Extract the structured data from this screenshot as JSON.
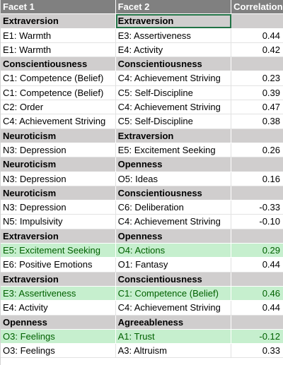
{
  "table": {
    "headers": [
      "Facet 1",
      "Facet 2",
      "Correlation"
    ],
    "rows": [
      {
        "type": "group",
        "c1": "Extraversion",
        "c2": "Extraversion",
        "c3": ""
      },
      {
        "type": "data",
        "c1": "E1: Warmth",
        "c2": "E3: Assertiveness",
        "c3": "0.44"
      },
      {
        "type": "data",
        "c1": "E1: Warmth",
        "c2": "E4: Activity",
        "c3": "0.42"
      },
      {
        "type": "group",
        "c1": "Conscientiousness",
        "c2": "Conscientiousness",
        "c3": ""
      },
      {
        "type": "data",
        "c1": "C1: Competence (Belief)",
        "c2": "C4: Achievement Striving",
        "c3": "0.23"
      },
      {
        "type": "data",
        "c1": "C1: Competence (Belief)",
        "c2": "C5: Self-Discipline",
        "c3": "0.39"
      },
      {
        "type": "data",
        "c1": "C2: Order",
        "c2": "C4: Achievement Striving",
        "c3": "0.47"
      },
      {
        "type": "data",
        "c1": "C4: Achievement Striving",
        "c2": "C5: Self-Discipline",
        "c3": "0.38"
      },
      {
        "type": "group",
        "c1": "Neuroticism",
        "c2": "Extraversion",
        "c3": ""
      },
      {
        "type": "data",
        "c1": "N3: Depression",
        "c2": "E5: Excitement Seeking",
        "c3": "0.26"
      },
      {
        "type": "group",
        "c1": "Neuroticism",
        "c2": "Openness",
        "c3": ""
      },
      {
        "type": "data",
        "c1": "N3: Depression",
        "c2": "O5: Ideas",
        "c3": "0.16"
      },
      {
        "type": "group",
        "c1": "Neuroticism",
        "c2": "Conscientiousness",
        "c3": ""
      },
      {
        "type": "data",
        "c1": "N3: Depression",
        "c2": "C6: Deliberation",
        "c3": "-0.33"
      },
      {
        "type": "data",
        "c1": "N5: Impulsivity",
        "c2": "C4: Achievement Striving",
        "c3": "-0.10"
      },
      {
        "type": "group",
        "c1": "Extraversion",
        "c2": "Openness",
        "c3": ""
      },
      {
        "type": "highlight",
        "c1": "E5: Excitement Seeking",
        "c2": "O4: Actions",
        "c3": "0.29"
      },
      {
        "type": "data",
        "c1": "E6: Positive Emotions",
        "c2": "O1: Fantasy",
        "c3": "0.44"
      },
      {
        "type": "group",
        "c1": "Extraversion",
        "c2": "Conscientiousness",
        "c3": ""
      },
      {
        "type": "highlight",
        "c1": "E3: Assertiveness",
        "c2": "C1: Competence (Belief)",
        "c3": "0.46"
      },
      {
        "type": "data",
        "c1": "E4: Activity",
        "c2": "C4: Achievement Striving",
        "c3": "0.44"
      },
      {
        "type": "group",
        "c1": "Openness",
        "c2": "Agreeableness",
        "c3": ""
      },
      {
        "type": "highlight",
        "c1": "O3: Feelings",
        "c2": "A1: Trust",
        "c3": "-0.12"
      },
      {
        "type": "data",
        "c1": "O3: Feelings",
        "c2": "A3: Altruism",
        "c3": "0.33"
      }
    ]
  },
  "colors": {
    "header_bg": "#808080",
    "group_bg": "#d0cece",
    "highlight_bg": "#c6efce",
    "highlight_text": "#006100",
    "selection": "#217346"
  }
}
